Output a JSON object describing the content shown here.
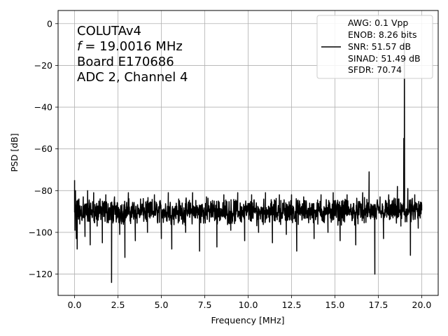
{
  "chart_data": {
    "type": "line",
    "xlabel": "Frequency [MHz]",
    "ylabel": "PSD [dB]",
    "xlim": [
      -0.95,
      20.95
    ],
    "ylim": [
      -130.2,
      6.3
    ],
    "xticks": [
      0.0,
      2.5,
      5.0,
      7.5,
      10.0,
      12.5,
      15.0,
      17.5,
      20.0
    ],
    "xtick_labels": [
      "0.0",
      "2.5",
      "5.0",
      "7.5",
      "10.0",
      "12.5",
      "15.0",
      "17.5",
      "20.0"
    ],
    "yticks": [
      0,
      -20,
      -40,
      -60,
      -80,
      -100,
      -120
    ],
    "ytick_labels": [
      "0",
      "−20",
      "−40",
      "−60",
      "−80",
      "−100",
      "−120"
    ],
    "grid": true,
    "legend_position": "top-right",
    "annotation": {
      "lines": [
        "COLUTAv4",
        "= 19.0016 MHz",
        "Board E170686",
        "ADC 2, Channel 4"
      ],
      "italic_prefix": "f"
    },
    "legend": {
      "lines": [
        "AWG: 0.1 Vpp",
        "ENOB: 8.26 bits",
        "SNR: 51.57 dB",
        "SINAD: 51.49 dB",
        "SFDR: 70.74"
      ]
    },
    "series": [
      {
        "color": "#000000",
        "noise_floor_db": -90,
        "noise_band_db": [
          -97,
          -83
        ],
        "points": [
          [
            0.0,
            -75
          ],
          [
            0.02,
            -99
          ],
          [
            0.05,
            -80
          ],
          [
            0.1,
            -103
          ],
          [
            0.15,
            -108
          ],
          [
            0.25,
            -84
          ],
          [
            0.3,
            -96
          ],
          [
            0.5,
            -83
          ],
          [
            0.6,
            -102
          ],
          [
            0.75,
            -80
          ],
          [
            0.9,
            -106
          ],
          [
            1.1,
            -81
          ],
          [
            1.3,
            -97
          ],
          [
            1.4,
            -85
          ],
          [
            1.6,
            -105
          ],
          [
            1.8,
            -82
          ],
          [
            2.0,
            -94
          ],
          [
            2.13,
            -124
          ],
          [
            2.3,
            -83
          ],
          [
            2.6,
            -101
          ],
          [
            2.9,
            -112
          ],
          [
            3.1,
            -81
          ],
          [
            3.5,
            -104
          ],
          [
            3.8,
            -84
          ],
          [
            4.2,
            -100
          ],
          [
            4.6,
            -82
          ],
          [
            5.0,
            -103
          ],
          [
            5.4,
            -81
          ],
          [
            5.6,
            -108
          ],
          [
            6.0,
            -84
          ],
          [
            6.4,
            -100
          ],
          [
            6.8,
            -81
          ],
          [
            7.2,
            -109
          ],
          [
            7.6,
            -83
          ],
          [
            8.2,
            -107
          ],
          [
            8.6,
            -82
          ],
          [
            9.0,
            -99
          ],
          [
            9.4,
            -81
          ],
          [
            9.8,
            -104
          ],
          [
            10.2,
            -82
          ],
          [
            10.6,
            -100
          ],
          [
            11.0,
            -81
          ],
          [
            11.4,
            -105
          ],
          [
            11.8,
            -82
          ],
          [
            12.2,
            -101
          ],
          [
            12.5,
            -82
          ],
          [
            12.8,
            -109
          ],
          [
            13.2,
            -83
          ],
          [
            13.8,
            -103
          ],
          [
            14.2,
            -82
          ],
          [
            14.6,
            -100
          ],
          [
            14.9,
            -81
          ],
          [
            15.3,
            -104
          ],
          [
            15.7,
            -82
          ],
          [
            16.2,
            -106
          ],
          [
            16.6,
            -81
          ],
          [
            16.97,
            -71
          ],
          [
            17.1,
            -90
          ],
          [
            17.3,
            -120
          ],
          [
            17.6,
            -83
          ],
          [
            17.8,
            -103
          ],
          [
            18.1,
            -82
          ],
          [
            18.6,
            -78
          ],
          [
            18.8,
            -97
          ],
          [
            18.97,
            -55
          ],
          [
            19.0016,
            -1
          ],
          [
            19.05,
            -95
          ],
          [
            19.2,
            -79
          ],
          [
            19.35,
            -111
          ],
          [
            19.6,
            -82
          ],
          [
            19.8,
            -98
          ],
          [
            20.0,
            -87
          ]
        ]
      }
    ]
  }
}
